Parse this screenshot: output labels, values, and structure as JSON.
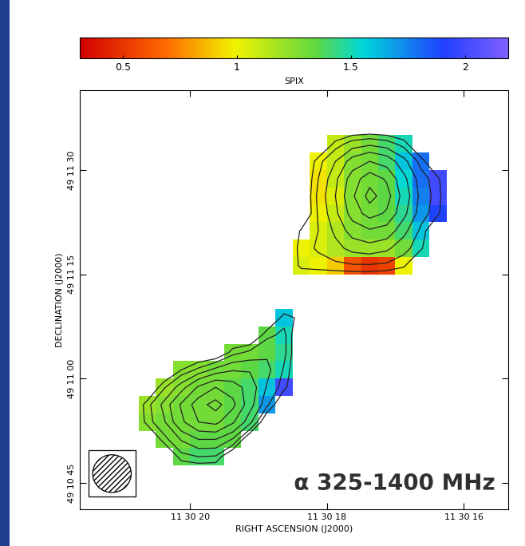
{
  "chart_data": {
    "type": "heatmap",
    "xlabel": "RIGHT ASCENSION (J2000)",
    "ylabel": "DECLINATION (J2000)",
    "annotation": "α 325-1400 MHz",
    "xlim": [
      21.61,
      15.35
    ],
    "ylim": [
      41.2,
      101.5
    ],
    "xticks": [
      {
        "value": 20,
        "label": "11 30 20"
      },
      {
        "value": 18,
        "label": "11 30 18"
      },
      {
        "value": 16,
        "label": "11 30 16"
      }
    ],
    "yticks": [
      {
        "value": 45,
        "label": "49 10 45"
      },
      {
        "value": 60,
        "label": "49 11 00"
      },
      {
        "value": 75,
        "label": "49 11 15"
      },
      {
        "value": 90,
        "label": "49 11 30"
      }
    ],
    "x_edges": [
      21,
      20.75,
      20.5,
      20.25,
      20,
      19.75,
      19.5,
      19.25,
      19,
      18.75,
      18.5,
      18.25,
      18,
      17.75,
      17.5,
      17.25,
      17,
      16.75,
      16.5,
      16.25,
      16
    ],
    "y_edges": [
      97.5,
      95,
      92.5,
      90,
      87.5,
      85,
      82.5,
      80,
      77.5,
      75,
      72.5,
      70,
      67.5,
      65,
      62.5,
      60,
      57.5,
      55,
      52.5,
      50,
      47.5,
      45
    ],
    "cells": [
      [
        null,
        null,
        null,
        null,
        null,
        null,
        null,
        null,
        null,
        null,
        null,
        null,
        null,
        null,
        null,
        null,
        null,
        null,
        null,
        null
      ],
      [
        null,
        null,
        null,
        null,
        null,
        null,
        null,
        null,
        null,
        null,
        null,
        null,
        1.1,
        1.2,
        1.3,
        1.4,
        1.5,
        null,
        null,
        null
      ],
      [
        null,
        null,
        null,
        null,
        null,
        null,
        null,
        null,
        null,
        null,
        null,
        1.0,
        1.1,
        1.25,
        1.3,
        1.4,
        1.6,
        1.8,
        null,
        null
      ],
      [
        null,
        null,
        null,
        null,
        null,
        null,
        null,
        null,
        null,
        null,
        null,
        0.95,
        1.1,
        1.25,
        1.3,
        1.35,
        1.55,
        1.8,
        2.0,
        null
      ],
      [
        null,
        null,
        null,
        null,
        null,
        null,
        null,
        null,
        null,
        null,
        null,
        0.95,
        1.05,
        1.25,
        1.3,
        1.35,
        1.5,
        1.75,
        2.0,
        null
      ],
      [
        null,
        null,
        null,
        null,
        null,
        null,
        null,
        null,
        null,
        null,
        null,
        1.0,
        1.1,
        1.25,
        1.3,
        1.35,
        1.45,
        1.7,
        1.9,
        null
      ],
      [
        null,
        null,
        null,
        null,
        null,
        null,
        null,
        null,
        null,
        null,
        null,
        1.05,
        1.15,
        1.25,
        1.3,
        1.3,
        1.4,
        1.6,
        null,
        null
      ],
      [
        null,
        null,
        null,
        null,
        null,
        null,
        null,
        null,
        null,
        null,
        1.0,
        1.05,
        1.15,
        1.2,
        1.2,
        1.2,
        1.3,
        1.5,
        null,
        null
      ],
      [
        null,
        null,
        null,
        null,
        null,
        null,
        null,
        null,
        null,
        null,
        1.05,
        1.0,
        0.9,
        0.6,
        0.5,
        0.55,
        1.0,
        null,
        null,
        null
      ],
      [
        null,
        null,
        null,
        null,
        null,
        null,
        null,
        null,
        null,
        null,
        null,
        null,
        null,
        null,
        null,
        null,
        null,
        null,
        null,
        null
      ],
      [
        null,
        null,
        null,
        null,
        null,
        null,
        null,
        null,
        null,
        null,
        null,
        null,
        null,
        null,
        null,
        null,
        null,
        null,
        null,
        null
      ],
      [
        null,
        null,
        null,
        null,
        null,
        null,
        null,
        null,
        null,
        1.6,
        null,
        null,
        null,
        null,
        null,
        null,
        null,
        null,
        null,
        null
      ],
      [
        null,
        null,
        null,
        null,
        null,
        null,
        null,
        null,
        1.35,
        1.5,
        null,
        null,
        null,
        null,
        null,
        null,
        null,
        null,
        null,
        null
      ],
      [
        null,
        null,
        null,
        null,
        null,
        null,
        1.3,
        1.3,
        1.35,
        1.45,
        null,
        null,
        null,
        null,
        null,
        null,
        null,
        null,
        null,
        null
      ],
      [
        null,
        null,
        null,
        1.25,
        1.25,
        1.3,
        1.3,
        1.35,
        1.4,
        1.5,
        null,
        null,
        null,
        null,
        null,
        null,
        null,
        null,
        null,
        null
      ],
      [
        null,
        null,
        1.2,
        1.25,
        1.3,
        1.3,
        1.35,
        1.4,
        1.6,
        2.0,
        null,
        null,
        null,
        null,
        null,
        null,
        null,
        null,
        null,
        null
      ],
      [
        null,
        1.2,
        1.25,
        1.3,
        1.3,
        1.3,
        1.35,
        1.4,
        1.7,
        null,
        null,
        null,
        null,
        null,
        null,
        null,
        null,
        null,
        null,
        null
      ],
      [
        null,
        1.25,
        1.3,
        1.3,
        1.3,
        1.3,
        1.35,
        1.4,
        null,
        null,
        null,
        null,
        null,
        null,
        null,
        null,
        null,
        null,
        null,
        null
      ],
      [
        null,
        null,
        1.3,
        1.3,
        1.35,
        1.35,
        1.35,
        null,
        null,
        null,
        null,
        null,
        null,
        null,
        null,
        null,
        null,
        null,
        null,
        null
      ],
      [
        null,
        null,
        null,
        1.35,
        1.4,
        1.4,
        null,
        null,
        null,
        null,
        null,
        null,
        null,
        null,
        null,
        null,
        null,
        null,
        null,
        null
      ],
      [
        null,
        null,
        null,
        null,
        null,
        null,
        null,
        null,
        null,
        null,
        null,
        null,
        null,
        null,
        null,
        null,
        null,
        null,
        null,
        null
      ]
    ],
    "color_range": [
      0.31,
      2.19
    ],
    "color_ticks": [
      0.5,
      1,
      1.5,
      2
    ],
    "colorbar_label": "SPIX",
    "contours": [
      [
        0,
        0,
        0,
        0,
        0,
        0,
        0,
        0,
        0,
        0,
        0,
        0,
        0,
        0,
        0,
        0,
        0,
        0,
        0,
        0
      ],
      [
        0,
        0,
        0,
        0,
        0,
        0,
        0,
        0,
        0,
        0,
        0,
        0,
        1.2,
        2,
        2.3,
        2,
        1.3,
        0,
        0,
        0
      ],
      [
        0,
        0,
        0,
        0,
        0,
        0,
        0,
        0,
        0,
        0,
        0,
        1.3,
        2.5,
        4,
        4.8,
        4.2,
        2.8,
        1.3,
        0,
        0
      ],
      [
        0,
        0,
        0,
        0,
        0,
        0,
        0,
        0,
        0,
        0,
        0,
        1.6,
        3.2,
        5.5,
        7,
        6,
        3.8,
        2,
        1.1,
        0
      ],
      [
        0,
        0,
        0,
        0,
        0,
        0,
        0,
        0,
        0,
        0,
        0,
        1.8,
        3.5,
        6,
        8,
        6.8,
        4.2,
        2.2,
        1.2,
        0
      ],
      [
        0,
        0,
        0,
        0,
        0,
        0,
        0,
        0,
        0,
        0,
        0,
        1.7,
        3.2,
        5.4,
        6.8,
        6,
        3.8,
        2,
        1.1,
        0
      ],
      [
        0,
        0,
        0,
        0,
        0,
        0,
        0,
        0,
        0,
        0,
        1.1,
        1.6,
        2.7,
        4,
        4.6,
        4.2,
        2.8,
        1.4,
        0,
        0
      ],
      [
        0,
        0,
        0,
        0,
        0,
        0,
        0,
        0,
        0,
        0,
        1.3,
        1.7,
        2.2,
        2.8,
        3,
        2.7,
        1.9,
        1.1,
        0,
        0
      ],
      [
        0,
        0,
        0,
        0,
        0,
        0,
        0,
        0,
        0,
        0,
        1.2,
        1.3,
        1.4,
        1.5,
        1.5,
        1.4,
        1.1,
        0,
        0,
        0
      ],
      [
        0,
        0,
        0,
        0,
        0,
        0,
        0,
        0,
        0,
        0,
        0,
        0,
        0,
        0,
        0,
        0,
        0,
        0,
        0,
        0
      ],
      [
        0,
        0,
        0,
        0,
        0,
        0,
        0,
        0,
        0,
        0,
        0,
        0,
        0,
        0,
        0,
        0,
        0,
        0,
        0,
        0
      ],
      [
        0,
        0,
        0,
        0,
        0,
        0,
        0,
        0,
        0,
        1.3,
        0.8,
        0,
        0,
        0,
        0,
        0,
        0,
        0,
        0,
        0
      ],
      [
        0,
        0,
        0,
        0,
        0,
        0,
        0,
        0,
        1.4,
        1.8,
        0,
        0,
        0,
        0,
        0,
        0,
        0,
        0,
        0,
        0
      ],
      [
        0,
        0,
        0,
        0,
        0,
        0,
        1.3,
        1.8,
        2.3,
        1.8,
        0,
        0,
        0,
        0,
        0,
        0,
        0,
        0,
        0,
        0
      ],
      [
        0,
        0,
        0,
        1.0,
        1.8,
        2.8,
        3.4,
        3.4,
        2.8,
        1.5,
        0,
        0,
        0,
        0,
        0,
        0,
        0,
        0,
        0,
        0
      ],
      [
        0,
        0,
        1.5,
        3,
        5,
        6.2,
        5.5,
        4.2,
        2.4,
        1.2,
        0,
        0,
        0,
        0,
        0,
        0,
        0,
        0,
        0,
        0
      ],
      [
        0,
        1.3,
        2.8,
        5,
        7,
        8,
        6.6,
        4,
        1.8,
        0,
        0,
        0,
        0,
        0,
        0,
        0,
        0,
        0,
        0,
        0
      ],
      [
        0,
        1.2,
        2.4,
        4.5,
        6.2,
        6.6,
        5,
        2.8,
        0,
        0,
        0,
        0,
        0,
        0,
        0,
        0,
        0,
        0,
        0,
        0
      ],
      [
        0,
        0,
        1.3,
        2.6,
        3.5,
        3.5,
        2.4,
        0,
        0,
        0,
        0,
        0,
        0,
        0,
        0,
        0,
        0,
        0,
        0,
        0
      ],
      [
        0,
        0,
        0,
        1.3,
        1.6,
        1.5,
        0,
        0,
        0,
        0,
        0,
        0,
        0,
        0,
        0,
        0,
        0,
        0,
        0,
        0
      ],
      [
        0,
        0,
        0,
        0,
        0,
        0,
        0,
        0,
        0,
        0,
        0,
        0,
        0,
        0,
        0,
        0,
        0,
        0,
        0,
        0
      ]
    ],
    "contour_levels": [
      1,
      1.6,
      2.5,
      3.5,
      4.8,
      6.2,
      7.5
    ]
  }
}
